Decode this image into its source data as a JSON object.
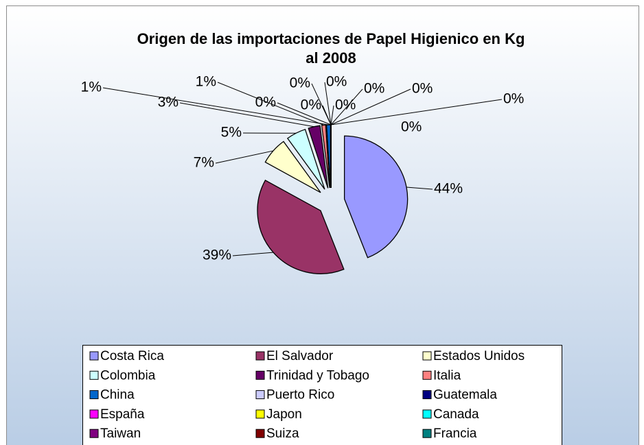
{
  "chart_data": {
    "type": "pie",
    "title": [
      "Origen de las importaciones de Papel Higienico en Kg",
      "al 2008"
    ],
    "categories": [
      "Costa Rica",
      "El Salvador",
      "Estados Unidos",
      "Colombia",
      "Trinidad y Tobago",
      "Italia",
      "China",
      "Puerto Rico",
      "Guatemala",
      "España",
      "Japon",
      "Canada",
      "Taiwan",
      "Suiza",
      "Francia",
      null
    ],
    "values": [
      44,
      39,
      7,
      5,
      3,
      1,
      1,
      0,
      0,
      0,
      0,
      0,
      0,
      0,
      0,
      0
    ],
    "value_labels": [
      "44%",
      "39%",
      "7%",
      "5%",
      "3%",
      "1%",
      "1%",
      "0%",
      "0%",
      "0%",
      "0%",
      "0%",
      "0%",
      "0%",
      "0%",
      "0%"
    ],
    "colors": [
      "#9999ff",
      "#993366",
      "#ffffcc",
      "#ccffff",
      "#660066",
      "#ff8080",
      "#0066cc",
      "#ccccff",
      "#000080",
      "#ff00ff",
      "#ffff00",
      "#00ffff",
      "#800080",
      "#800000",
      "#008080",
      "#0000ff"
    ],
    "legend": "bottom"
  }
}
